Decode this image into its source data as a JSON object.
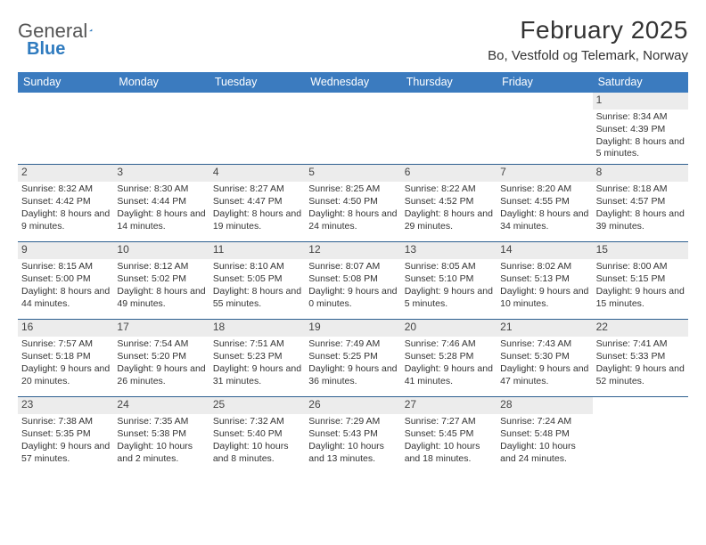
{
  "brand": {
    "part1": "General",
    "part2": "Blue"
  },
  "title": "February 2025",
  "location": "Bo, Vestfold og Telemark, Norway",
  "colors": {
    "header_bg": "#3b7bbf",
    "header_text": "#ffffff",
    "rule": "#2d5f8f",
    "numrow_bg": "#ececec",
    "text": "#333333",
    "brand_blue": "#2f7bbf"
  },
  "daynames": [
    "Sunday",
    "Monday",
    "Tuesday",
    "Wednesday",
    "Thursday",
    "Friday",
    "Saturday"
  ],
  "layout": {
    "columns": 7,
    "rows": 5,
    "cell_font_size_pt": 8,
    "title_font_size_pt": 21,
    "location_font_size_pt": 11
  },
  "weeks": [
    [
      {
        "n": "",
        "sunrise": "",
        "sunset": "",
        "daylight": ""
      },
      {
        "n": "",
        "sunrise": "",
        "sunset": "",
        "daylight": ""
      },
      {
        "n": "",
        "sunrise": "",
        "sunset": "",
        "daylight": ""
      },
      {
        "n": "",
        "sunrise": "",
        "sunset": "",
        "daylight": ""
      },
      {
        "n": "",
        "sunrise": "",
        "sunset": "",
        "daylight": ""
      },
      {
        "n": "",
        "sunrise": "",
        "sunset": "",
        "daylight": ""
      },
      {
        "n": "1",
        "sunrise": "Sunrise: 8:34 AM",
        "sunset": "Sunset: 4:39 PM",
        "daylight": "Daylight: 8 hours and 5 minutes."
      }
    ],
    [
      {
        "n": "2",
        "sunrise": "Sunrise: 8:32 AM",
        "sunset": "Sunset: 4:42 PM",
        "daylight": "Daylight: 8 hours and 9 minutes."
      },
      {
        "n": "3",
        "sunrise": "Sunrise: 8:30 AM",
        "sunset": "Sunset: 4:44 PM",
        "daylight": "Daylight: 8 hours and 14 minutes."
      },
      {
        "n": "4",
        "sunrise": "Sunrise: 8:27 AM",
        "sunset": "Sunset: 4:47 PM",
        "daylight": "Daylight: 8 hours and 19 minutes."
      },
      {
        "n": "5",
        "sunrise": "Sunrise: 8:25 AM",
        "sunset": "Sunset: 4:50 PM",
        "daylight": "Daylight: 8 hours and 24 minutes."
      },
      {
        "n": "6",
        "sunrise": "Sunrise: 8:22 AM",
        "sunset": "Sunset: 4:52 PM",
        "daylight": "Daylight: 8 hours and 29 minutes."
      },
      {
        "n": "7",
        "sunrise": "Sunrise: 8:20 AM",
        "sunset": "Sunset: 4:55 PM",
        "daylight": "Daylight: 8 hours and 34 minutes."
      },
      {
        "n": "8",
        "sunrise": "Sunrise: 8:18 AM",
        "sunset": "Sunset: 4:57 PM",
        "daylight": "Daylight: 8 hours and 39 minutes."
      }
    ],
    [
      {
        "n": "9",
        "sunrise": "Sunrise: 8:15 AM",
        "sunset": "Sunset: 5:00 PM",
        "daylight": "Daylight: 8 hours and 44 minutes."
      },
      {
        "n": "10",
        "sunrise": "Sunrise: 8:12 AM",
        "sunset": "Sunset: 5:02 PM",
        "daylight": "Daylight: 8 hours and 49 minutes."
      },
      {
        "n": "11",
        "sunrise": "Sunrise: 8:10 AM",
        "sunset": "Sunset: 5:05 PM",
        "daylight": "Daylight: 8 hours and 55 minutes."
      },
      {
        "n": "12",
        "sunrise": "Sunrise: 8:07 AM",
        "sunset": "Sunset: 5:08 PM",
        "daylight": "Daylight: 9 hours and 0 minutes."
      },
      {
        "n": "13",
        "sunrise": "Sunrise: 8:05 AM",
        "sunset": "Sunset: 5:10 PM",
        "daylight": "Daylight: 9 hours and 5 minutes."
      },
      {
        "n": "14",
        "sunrise": "Sunrise: 8:02 AM",
        "sunset": "Sunset: 5:13 PM",
        "daylight": "Daylight: 9 hours and 10 minutes."
      },
      {
        "n": "15",
        "sunrise": "Sunrise: 8:00 AM",
        "sunset": "Sunset: 5:15 PM",
        "daylight": "Daylight: 9 hours and 15 minutes."
      }
    ],
    [
      {
        "n": "16",
        "sunrise": "Sunrise: 7:57 AM",
        "sunset": "Sunset: 5:18 PM",
        "daylight": "Daylight: 9 hours and 20 minutes."
      },
      {
        "n": "17",
        "sunrise": "Sunrise: 7:54 AM",
        "sunset": "Sunset: 5:20 PM",
        "daylight": "Daylight: 9 hours and 26 minutes."
      },
      {
        "n": "18",
        "sunrise": "Sunrise: 7:51 AM",
        "sunset": "Sunset: 5:23 PM",
        "daylight": "Daylight: 9 hours and 31 minutes."
      },
      {
        "n": "19",
        "sunrise": "Sunrise: 7:49 AM",
        "sunset": "Sunset: 5:25 PM",
        "daylight": "Daylight: 9 hours and 36 minutes."
      },
      {
        "n": "20",
        "sunrise": "Sunrise: 7:46 AM",
        "sunset": "Sunset: 5:28 PM",
        "daylight": "Daylight: 9 hours and 41 minutes."
      },
      {
        "n": "21",
        "sunrise": "Sunrise: 7:43 AM",
        "sunset": "Sunset: 5:30 PM",
        "daylight": "Daylight: 9 hours and 47 minutes."
      },
      {
        "n": "22",
        "sunrise": "Sunrise: 7:41 AM",
        "sunset": "Sunset: 5:33 PM",
        "daylight": "Daylight: 9 hours and 52 minutes."
      }
    ],
    [
      {
        "n": "23",
        "sunrise": "Sunrise: 7:38 AM",
        "sunset": "Sunset: 5:35 PM",
        "daylight": "Daylight: 9 hours and 57 minutes."
      },
      {
        "n": "24",
        "sunrise": "Sunrise: 7:35 AM",
        "sunset": "Sunset: 5:38 PM",
        "daylight": "Daylight: 10 hours and 2 minutes."
      },
      {
        "n": "25",
        "sunrise": "Sunrise: 7:32 AM",
        "sunset": "Sunset: 5:40 PM",
        "daylight": "Daylight: 10 hours and 8 minutes."
      },
      {
        "n": "26",
        "sunrise": "Sunrise: 7:29 AM",
        "sunset": "Sunset: 5:43 PM",
        "daylight": "Daylight: 10 hours and 13 minutes."
      },
      {
        "n": "27",
        "sunrise": "Sunrise: 7:27 AM",
        "sunset": "Sunset: 5:45 PM",
        "daylight": "Daylight: 10 hours and 18 minutes."
      },
      {
        "n": "28",
        "sunrise": "Sunrise: 7:24 AM",
        "sunset": "Sunset: 5:48 PM",
        "daylight": "Daylight: 10 hours and 24 minutes."
      },
      {
        "n": "",
        "sunrise": "",
        "sunset": "",
        "daylight": ""
      }
    ]
  ]
}
